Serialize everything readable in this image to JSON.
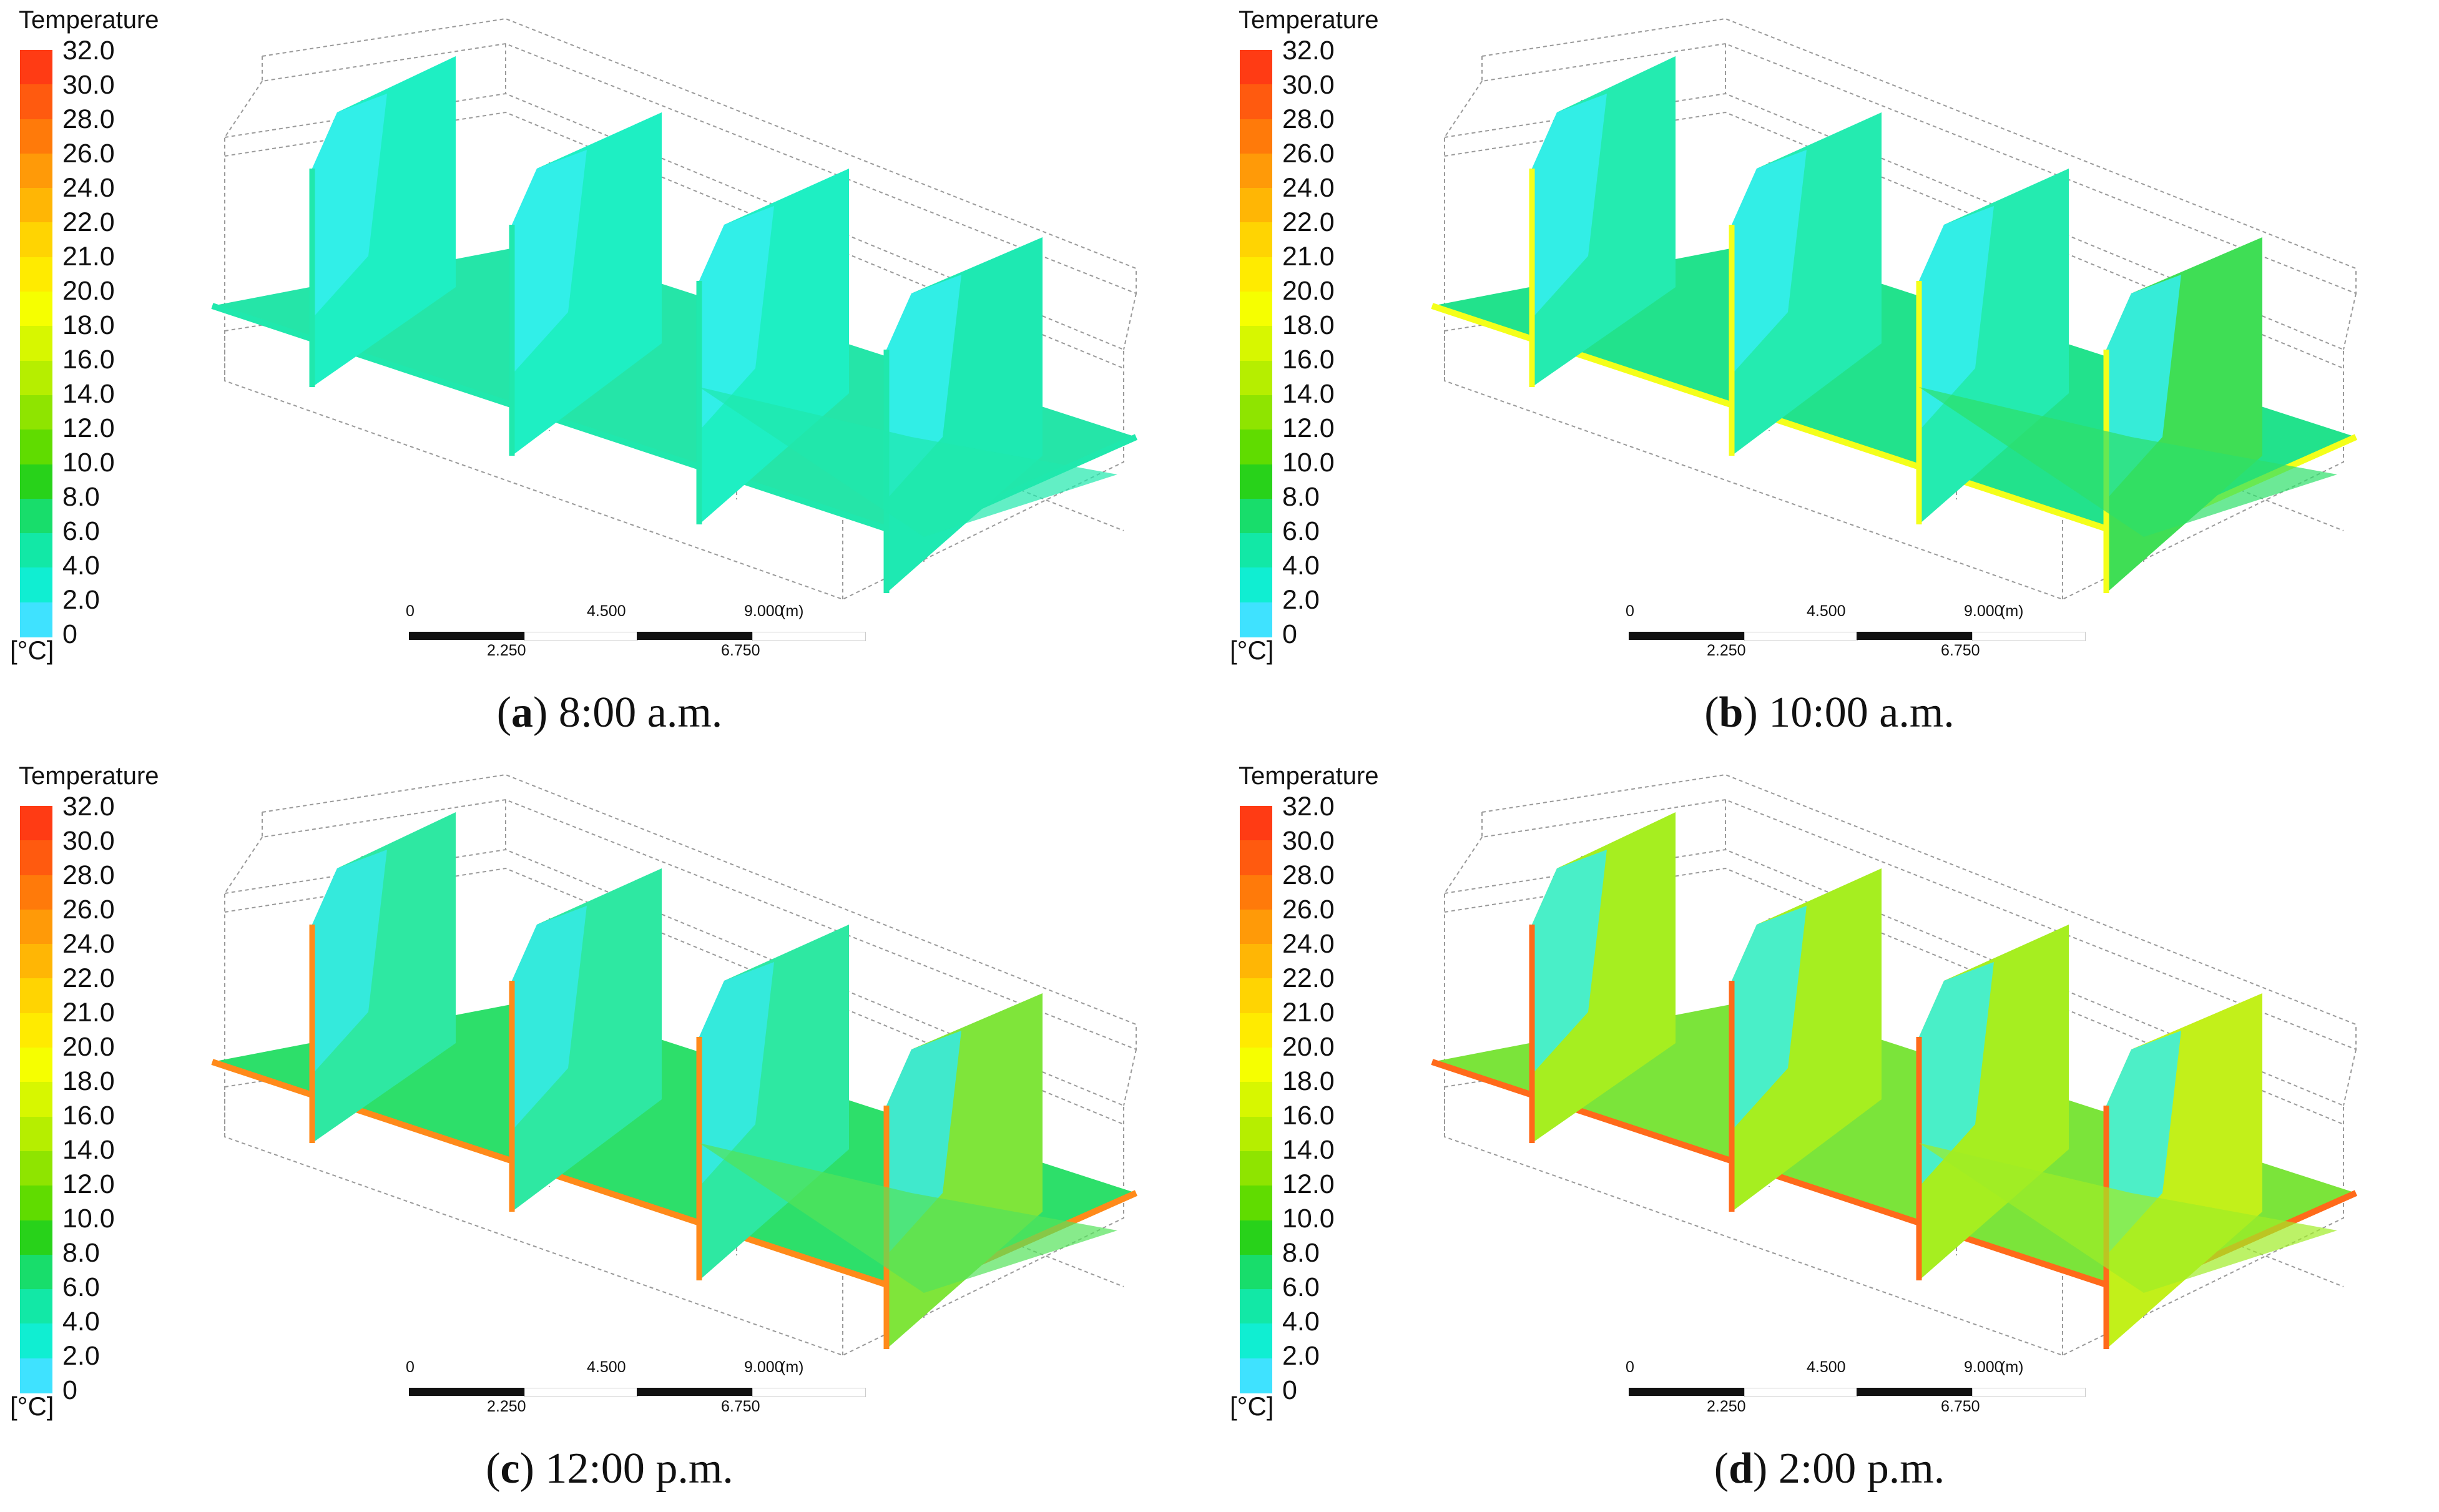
{
  "legend": {
    "title": "Temperature",
    "unit": "[°C]",
    "ticks": [
      "32.0",
      "30.0",
      "28.0",
      "26.0",
      "24.0",
      "22.0",
      "21.0",
      "20.0",
      "18.0",
      "16.0",
      "14.0",
      "12.0",
      "10.0",
      "8.0",
      "6.0",
      "4.0",
      "2.0",
      "0"
    ],
    "colors": [
      "#ff3b14",
      "#ff5a0f",
      "#ff7a0a",
      "#ff9a08",
      "#ffb605",
      "#ffd402",
      "#ffeb00",
      "#f6ff00",
      "#d7f700",
      "#b6ee00",
      "#8fe400",
      "#60dc00",
      "#28d21a",
      "#18dd6b",
      "#12e8a6",
      "#10eed2",
      "#3fe2ff"
    ]
  },
  "scalebar": {
    "top_labels": [
      "0",
      "4.500",
      "9.000",
      "(m)"
    ],
    "bottom_labels": [
      "2.250",
      "6.750"
    ]
  },
  "panels": [
    {
      "letter": "a",
      "time": "8:00 a.m.",
      "colors": {
        "plane": "#25e5a8",
        "wall": "#1eefc3",
        "wall_cold": "#35eeee",
        "edge": "#20e8ad",
        "floor": "#20e8ad",
        "accent": "#1ee9b2"
      }
    },
    {
      "letter": "b",
      "time": "10:00 a.m.",
      "colors": {
        "plane": "#22e28c",
        "wall": "#24ebb0",
        "wall_cold": "#35eef0",
        "edge": "#f4ff1a",
        "floor": "#2ddf6a",
        "accent": "#3fde55"
      }
    },
    {
      "letter": "c",
      "time": "12:00 p.m.",
      "colors": {
        "plane": "#2ddf6a",
        "wall": "#2ee8a2",
        "wall_cold": "#35eae6",
        "edge": "#ff8a1a",
        "floor": "#54e25a",
        "accent": "#7fe53a"
      }
    },
    {
      "letter": "d",
      "time": "2:00 p.m.",
      "colors": {
        "plane": "#7be43a",
        "wall": "#a6ee20",
        "wall_cold": "#38eee6",
        "edge": "#ff6a1a",
        "floor": "#9fec26",
        "accent": "#c2f01a"
      }
    }
  ]
}
